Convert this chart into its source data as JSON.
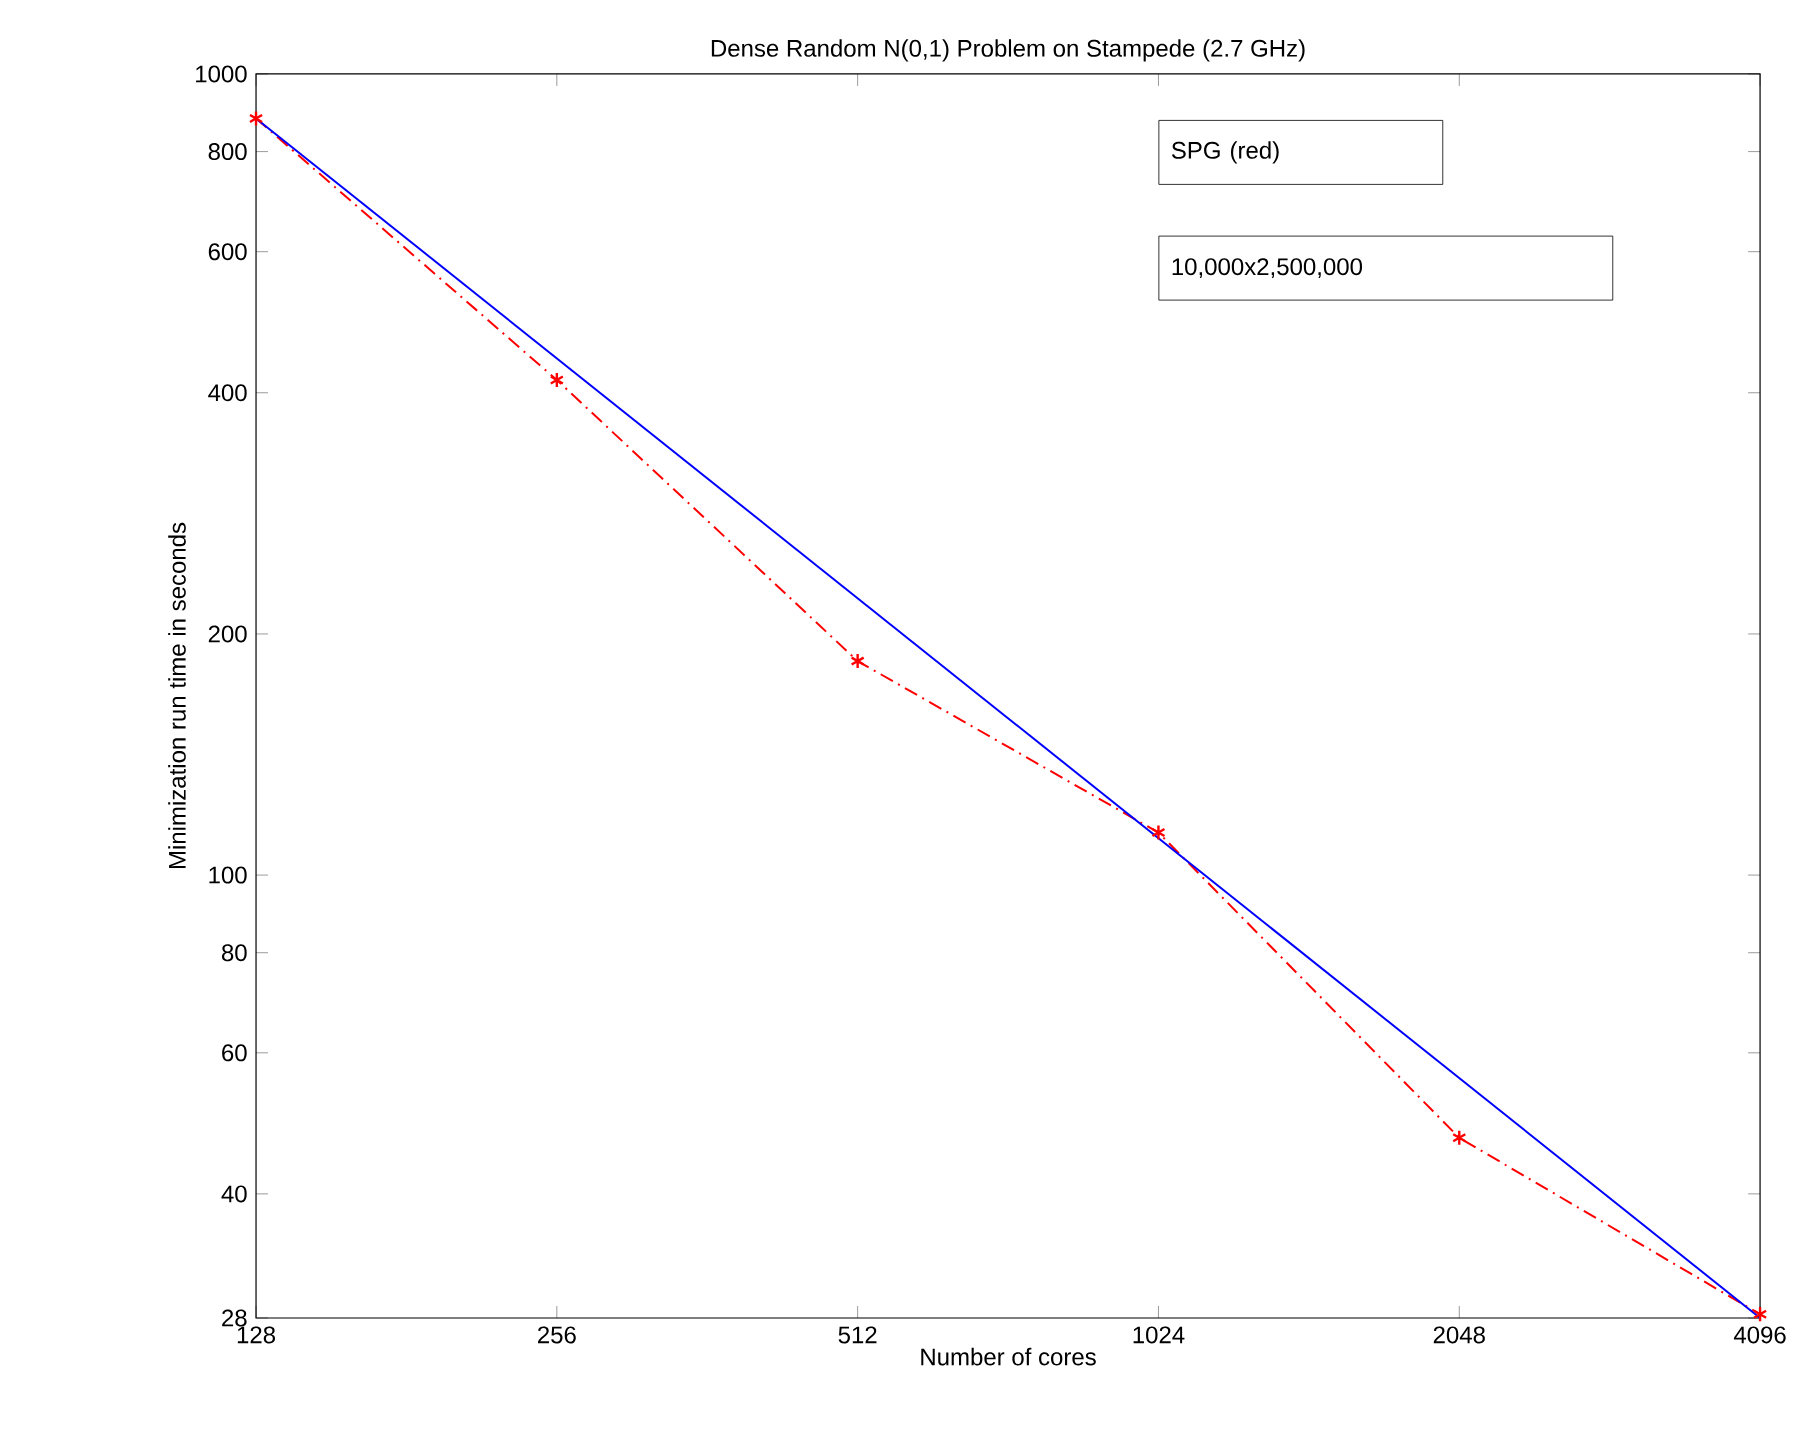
{
  "chart_data": {
    "type": "line",
    "title": "Dense Random N(0,1) Problem on Stampede (2.7 GHz)",
    "xlabel": "Number of cores",
    "ylabel": "Minimization run time in seconds",
    "log": "xy",
    "grid": false,
    "xlim": [
      128,
      4096
    ],
    "xticks": [
      128,
      256,
      512,
      1024,
      2048,
      4096
    ],
    "ylim": [
      28,
      1000
    ],
    "yticks": [
      28,
      40,
      60,
      80,
      100,
      200,
      400,
      600,
      800,
      1000
    ],
    "x": [
      128,
      256,
      512,
      1024,
      2048,
      4096
    ],
    "series": [
      {
        "color": "#ff0000",
        "values": [
          880,
          415,
          185,
          113,
          47,
          28.3
        ],
        "marker": "cross",
        "line_style": "dashed"
      },
      {
        "color": "#0000ff",
        "x": [
          128,
          4096
        ],
        "values": [
          880,
          28
        ],
        "marker": "none",
        "line_style": "solid"
      }
    ],
    "annotations": [
      "SPG (red)",
      "10,000x2,500,000"
    ]
  }
}
